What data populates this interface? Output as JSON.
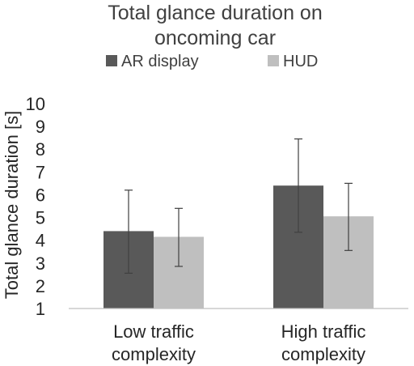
{
  "chart_data": {
    "type": "bar",
    "title_lines": [
      "Total glance duration on",
      "oncoming car"
    ],
    "ylabel": "Total glance duration [s]",
    "xlabel": "",
    "categories": [
      {
        "lines": [
          "Low traffic",
          "complexity"
        ]
      },
      {
        "lines": [
          "High traffic",
          "complexity"
        ]
      }
    ],
    "series": [
      {
        "name": "AR display",
        "color": "#595959",
        "values": [
          4.4,
          6.4
        ],
        "error_low": [
          2.55,
          4.35
        ],
        "error_high": [
          6.2,
          8.45
        ]
      },
      {
        "name": "HUD",
        "color": "#bfbfbf",
        "values": [
          4.15,
          5.05
        ],
        "error_low": [
          2.85,
          3.55
        ],
        "error_high": [
          5.4,
          6.5
        ]
      }
    ],
    "ylim": [
      1,
      10
    ],
    "yticks": [
      "1",
      "2",
      "3",
      "4",
      "5",
      "6",
      "7",
      "8",
      "9",
      "10"
    ],
    "grid": false,
    "legend_position": "top"
  }
}
